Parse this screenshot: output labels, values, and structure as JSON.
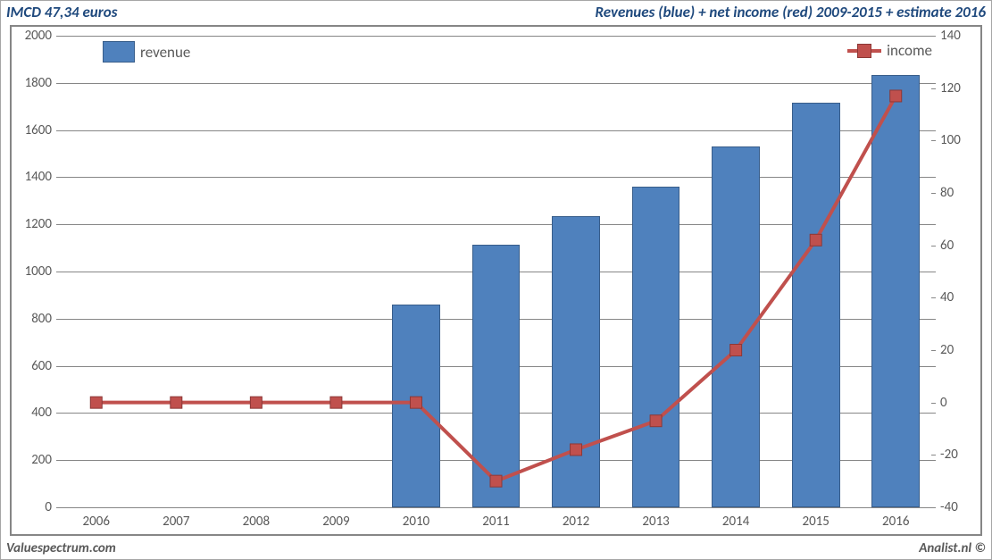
{
  "header": {
    "left": "IMCD 47,34 euros",
    "right": "Revenues (blue) + net income (red) 2009-2015 + estimate 2016"
  },
  "footer": {
    "left": "Valuespectrum.com",
    "right": "Analist.nl ©"
  },
  "chart": {
    "type": "bar+line-dual-axis",
    "categories": [
      "2006",
      "2007",
      "2008",
      "2009",
      "2010",
      "2011",
      "2012",
      "2013",
      "2014",
      "2015",
      "2016"
    ],
    "revenue": {
      "values": [
        0,
        0,
        0,
        0,
        860,
        1115,
        1235,
        1360,
        1530,
        1715,
        1835
      ],
      "color": "#4f81bd",
      "border_color": "#385d8a",
      "bar_width_ratio": 0.6,
      "legend_label": "revenue"
    },
    "income": {
      "values": [
        0,
        0,
        0,
        0,
        0,
        -30,
        -18,
        -7,
        20,
        62,
        117
      ],
      "color": "#c0504d",
      "border_color": "#8c3836",
      "line_width": 4,
      "marker_size": 13,
      "legend_label": "income"
    },
    "y_left": {
      "min": 0,
      "max": 2000,
      "step": 200
    },
    "y_right": {
      "min": -40,
      "max": 140,
      "step": 20
    },
    "colors": {
      "grid": "#868686",
      "axis_label": "#595959",
      "title": "#1f497d",
      "background": "#ffffff"
    },
    "fonts": {
      "title_size": 17,
      "axis_label_size": 15,
      "legend_size": 17
    },
    "legend": {
      "revenue_pos": "top-left-inside",
      "income_pos": "top-right-inside"
    }
  }
}
